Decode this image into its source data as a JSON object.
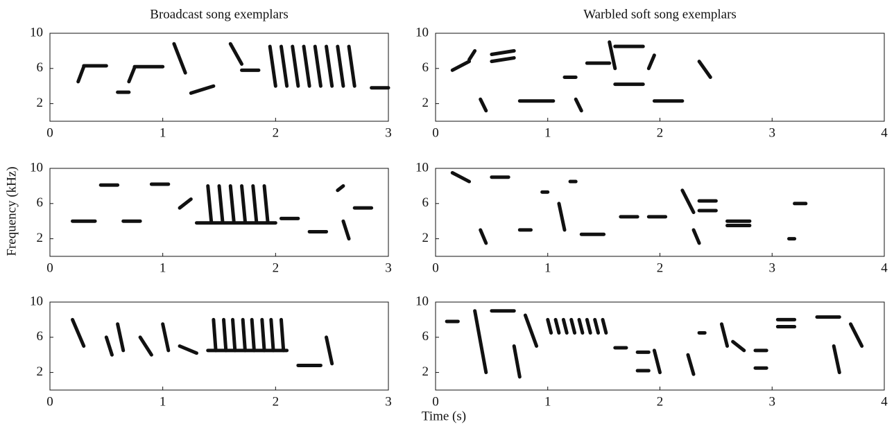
{
  "xlabel": "Time (s)",
  "ylabel": "Frequency (kHz)",
  "chart_data": [
    {
      "type": "spectrogram",
      "title": "Broadcast song exemplars",
      "xlim": [
        0,
        3
      ],
      "ylim": [
        0,
        10
      ],
      "xticks": [
        0,
        1,
        2,
        3
      ],
      "yticks": [
        2,
        6,
        10
      ],
      "color": "#111111",
      "strokes": [
        {
          "t": [
            0.25,
            0.3
          ],
          "f": [
            4.5,
            6.2
          ]
        },
        {
          "t": [
            0.3,
            0.5
          ],
          "f": [
            6.3,
            6.3
          ]
        },
        {
          "t": [
            0.6,
            0.7
          ],
          "f": [
            3.3,
            3.3
          ]
        },
        {
          "t": [
            0.7,
            0.75
          ],
          "f": [
            4.5,
            6.1
          ]
        },
        {
          "t": [
            0.75,
            1.0
          ],
          "f": [
            6.2,
            6.2
          ]
        },
        {
          "t": [
            1.1,
            1.2
          ],
          "f": [
            8.8,
            5.5
          ]
        },
        {
          "t": [
            1.25,
            1.45
          ],
          "f": [
            3.2,
            4.0
          ]
        },
        {
          "t": [
            1.6,
            1.7
          ],
          "f": [
            8.8,
            6.5
          ]
        },
        {
          "t": [
            1.7,
            1.85
          ],
          "f": [
            5.8,
            5.8
          ]
        },
        {
          "t": [
            1.95,
            2.0
          ],
          "f": [
            8.5,
            4.0
          ]
        },
        {
          "t": [
            2.05,
            2.1
          ],
          "f": [
            8.5,
            4.0
          ]
        },
        {
          "t": [
            2.15,
            2.2
          ],
          "f": [
            8.5,
            4.0
          ]
        },
        {
          "t": [
            2.25,
            2.3
          ],
          "f": [
            8.5,
            4.0
          ]
        },
        {
          "t": [
            2.35,
            2.4
          ],
          "f": [
            8.5,
            4.0
          ]
        },
        {
          "t": [
            2.45,
            2.5
          ],
          "f": [
            8.5,
            4.0
          ]
        },
        {
          "t": [
            2.55,
            2.6
          ],
          "f": [
            8.5,
            4.0
          ]
        },
        {
          "t": [
            2.65,
            2.7
          ],
          "f": [
            8.5,
            4.0
          ]
        },
        {
          "t": [
            2.85,
            3.0
          ],
          "f": [
            3.8,
            3.8
          ]
        }
      ]
    },
    {
      "type": "spectrogram",
      "title": "Warbled soft song exemplars",
      "xlim": [
        0,
        4
      ],
      "ylim": [
        0,
        10
      ],
      "xticks": [
        0,
        1,
        2,
        3,
        4
      ],
      "yticks": [
        2,
        6,
        10
      ],
      "color": "#111111",
      "strokes": [
        {
          "t": [
            0.15,
            0.3
          ],
          "f": [
            5.8,
            6.8
          ]
        },
        {
          "t": [
            0.3,
            0.35
          ],
          "f": [
            7,
            8
          ]
        },
        {
          "t": [
            0.4,
            0.45
          ],
          "f": [
            2.5,
            1.2
          ]
        },
        {
          "t": [
            0.5,
            0.7
          ],
          "f": [
            7.6,
            8
          ]
        },
        {
          "t": [
            0.5,
            0.7
          ],
          "f": [
            6.8,
            7.2
          ]
        },
        {
          "t": [
            0.75,
            1.05
          ],
          "f": [
            2.3,
            2.3
          ]
        },
        {
          "t": [
            1.15,
            1.25
          ],
          "f": [
            5,
            5
          ]
        },
        {
          "t": [
            1.25,
            1.3
          ],
          "f": [
            2.5,
            1.2
          ]
        },
        {
          "t": [
            1.35,
            1.55
          ],
          "f": [
            6.6,
            6.6
          ]
        },
        {
          "t": [
            1.55,
            1.6
          ],
          "f": [
            9,
            6
          ]
        },
        {
          "t": [
            1.6,
            1.85
          ],
          "f": [
            8.5,
            8.5
          ]
        },
        {
          "t": [
            1.6,
            1.85
          ],
          "f": [
            4.2,
            4.2
          ]
        },
        {
          "t": [
            1.9,
            1.95
          ],
          "f": [
            6,
            7.5
          ]
        },
        {
          "t": [
            1.95,
            2.2
          ],
          "f": [
            2.3,
            2.3
          ]
        },
        {
          "t": [
            2.35,
            2.45
          ],
          "f": [
            6.8,
            5
          ]
        }
      ]
    },
    {
      "type": "spectrogram",
      "xlim": [
        0,
        3
      ],
      "ylim": [
        0,
        10
      ],
      "xticks": [
        0,
        1,
        2,
        3
      ],
      "yticks": [
        2,
        6,
        10
      ],
      "color": "#111111",
      "strokes": [
        {
          "t": [
            0.2,
            0.4
          ],
          "f": [
            4,
            4
          ]
        },
        {
          "t": [
            0.45,
            0.6
          ],
          "f": [
            8.1,
            8.1
          ]
        },
        {
          "t": [
            0.65,
            0.8
          ],
          "f": [
            4,
            4
          ]
        },
        {
          "t": [
            0.9,
            1.05
          ],
          "f": [
            8.2,
            8.2
          ]
        },
        {
          "t": [
            1.15,
            1.25
          ],
          "f": [
            5.5,
            6.5
          ]
        },
        {
          "t": [
            1.4,
            1.43
          ],
          "f": [
            8,
            4
          ]
        },
        {
          "t": [
            1.5,
            1.53
          ],
          "f": [
            8,
            4
          ]
        },
        {
          "t": [
            1.6,
            1.63
          ],
          "f": [
            8,
            4
          ]
        },
        {
          "t": [
            1.7,
            1.73
          ],
          "f": [
            8,
            4
          ]
        },
        {
          "t": [
            1.8,
            1.83
          ],
          "f": [
            8,
            4
          ]
        },
        {
          "t": [
            1.9,
            1.93
          ],
          "f": [
            8,
            4
          ]
        },
        {
          "t": [
            1.3,
            2.0
          ],
          "f": [
            3.8,
            3.8
          ]
        },
        {
          "t": [
            2.05,
            2.2
          ],
          "f": [
            4.3,
            4.3
          ]
        },
        {
          "t": [
            2.3,
            2.45
          ],
          "f": [
            2.8,
            2.8
          ]
        },
        {
          "t": [
            2.55,
            2.6
          ],
          "f": [
            7.5,
            8
          ]
        },
        {
          "t": [
            2.6,
            2.65
          ],
          "f": [
            4,
            2
          ]
        },
        {
          "t": [
            2.7,
            2.85
          ],
          "f": [
            5.5,
            5.5
          ]
        }
      ]
    },
    {
      "type": "spectrogram",
      "xlim": [
        0,
        4
      ],
      "ylim": [
        0,
        10
      ],
      "xticks": [
        0,
        1,
        2,
        3,
        4
      ],
      "yticks": [
        2,
        6,
        10
      ],
      "color": "#111111",
      "strokes": [
        {
          "t": [
            0.15,
            0.3
          ],
          "f": [
            9.5,
            8.5
          ]
        },
        {
          "t": [
            0.4,
            0.45
          ],
          "f": [
            3,
            1.5
          ]
        },
        {
          "t": [
            0.5,
            0.65
          ],
          "f": [
            9,
            9
          ]
        },
        {
          "t": [
            0.75,
            0.85
          ],
          "f": [
            3,
            3
          ]
        },
        {
          "t": [
            0.95,
            1.0
          ],
          "f": [
            7.3,
            7.3
          ]
        },
        {
          "t": [
            1.1,
            1.15
          ],
          "f": [
            6,
            3
          ]
        },
        {
          "t": [
            1.2,
            1.25
          ],
          "f": [
            8.5,
            8.5
          ]
        },
        {
          "t": [
            1.3,
            1.5
          ],
          "f": [
            2.5,
            2.5
          ]
        },
        {
          "t": [
            1.65,
            1.8
          ],
          "f": [
            4.5,
            4.5
          ]
        },
        {
          "t": [
            1.9,
            2.05
          ],
          "f": [
            4.5,
            4.5
          ]
        },
        {
          "t": [
            2.2,
            2.3
          ],
          "f": [
            7.5,
            5
          ]
        },
        {
          "t": [
            2.3,
            2.35
          ],
          "f": [
            3,
            1.5
          ]
        },
        {
          "t": [
            2.35,
            2.5
          ],
          "f": [
            6.3,
            6.3
          ]
        },
        {
          "t": [
            2.35,
            2.5
          ],
          "f": [
            5.2,
            5.2
          ]
        },
        {
          "t": [
            2.6,
            2.8
          ],
          "f": [
            4,
            4
          ]
        },
        {
          "t": [
            2.6,
            2.8
          ],
          "f": [
            3.5,
            3.5
          ]
        },
        {
          "t": [
            3.2,
            3.3
          ],
          "f": [
            6,
            6
          ]
        },
        {
          "t": [
            3.15,
            3.2
          ],
          "f": [
            2,
            2
          ]
        }
      ]
    },
    {
      "type": "spectrogram",
      "xlim": [
        0,
        3
      ],
      "ylim": [
        0,
        10
      ],
      "xticks": [
        0,
        1,
        2,
        3
      ],
      "yticks": [
        2,
        6,
        10
      ],
      "color": "#111111",
      "strokes": [
        {
          "t": [
            0.2,
            0.3
          ],
          "f": [
            8,
            5
          ]
        },
        {
          "t": [
            0.5,
            0.55
          ],
          "f": [
            6,
            4
          ]
        },
        {
          "t": [
            0.6,
            0.65
          ],
          "f": [
            7.5,
            4.5
          ]
        },
        {
          "t": [
            0.8,
            0.9
          ],
          "f": [
            6,
            4
          ]
        },
        {
          "t": [
            1.0,
            1.05
          ],
          "f": [
            7.5,
            4.5
          ]
        },
        {
          "t": [
            1.15,
            1.3
          ],
          "f": [
            5,
            4.2
          ]
        },
        {
          "t": [
            1.45,
            1.47
          ],
          "f": [
            8,
            4.5
          ]
        },
        {
          "t": [
            1.54,
            1.56
          ],
          "f": [
            8,
            4.5
          ]
        },
        {
          "t": [
            1.62,
            1.64
          ],
          "f": [
            8,
            4.5
          ]
        },
        {
          "t": [
            1.71,
            1.73
          ],
          "f": [
            8,
            4.5
          ]
        },
        {
          "t": [
            1.79,
            1.81
          ],
          "f": [
            8,
            4.5
          ]
        },
        {
          "t": [
            1.88,
            1.9
          ],
          "f": [
            8,
            4.5
          ]
        },
        {
          "t": [
            1.96,
            1.98
          ],
          "f": [
            8,
            4.5
          ]
        },
        {
          "t": [
            2.05,
            2.07
          ],
          "f": [
            8,
            4.5
          ]
        },
        {
          "t": [
            1.4,
            2.1
          ],
          "f": [
            4.5,
            4.5
          ]
        },
        {
          "t": [
            2.2,
            2.4
          ],
          "f": [
            2.8,
            2.8
          ]
        },
        {
          "t": [
            2.45,
            2.5
          ],
          "f": [
            6,
            3
          ]
        }
      ]
    },
    {
      "type": "spectrogram",
      "xlim": [
        0,
        4
      ],
      "ylim": [
        0,
        10
      ],
      "xticks": [
        0,
        1,
        2,
        3,
        4
      ],
      "yticks": [
        2,
        6,
        10
      ],
      "color": "#111111",
      "strokes": [
        {
          "t": [
            0.1,
            0.2
          ],
          "f": [
            7.8,
            7.8
          ]
        },
        {
          "t": [
            0.35,
            0.45
          ],
          "f": [
            9,
            2
          ]
        },
        {
          "t": [
            0.5,
            0.7
          ],
          "f": [
            9,
            9
          ]
        },
        {
          "t": [
            0.7,
            0.75
          ],
          "f": [
            5,
            1.5
          ]
        },
        {
          "t": [
            0.8,
            0.9
          ],
          "f": [
            8.5,
            5
          ]
        },
        {
          "t": [
            1.0,
            1.03
          ],
          "f": [
            8,
            6.5
          ]
        },
        {
          "t": [
            1.07,
            1.1
          ],
          "f": [
            8,
            6.5
          ]
        },
        {
          "t": [
            1.14,
            1.17
          ],
          "f": [
            8,
            6.5
          ]
        },
        {
          "t": [
            1.21,
            1.24
          ],
          "f": [
            8,
            6.5
          ]
        },
        {
          "t": [
            1.28,
            1.31
          ],
          "f": [
            8,
            6.5
          ]
        },
        {
          "t": [
            1.35,
            1.38
          ],
          "f": [
            8,
            6.5
          ]
        },
        {
          "t": [
            1.42,
            1.45
          ],
          "f": [
            8,
            6.5
          ]
        },
        {
          "t": [
            1.49,
            1.52
          ],
          "f": [
            8,
            6.5
          ]
        },
        {
          "t": [
            1.6,
            1.7
          ],
          "f": [
            4.8,
            4.8
          ]
        },
        {
          "t": [
            1.8,
            1.9
          ],
          "f": [
            4.3,
            4.3
          ]
        },
        {
          "t": [
            1.8,
            1.9
          ],
          "f": [
            2.2,
            2.2
          ]
        },
        {
          "t": [
            1.95,
            2.0
          ],
          "f": [
            4.5,
            2
          ]
        },
        {
          "t": [
            2.25,
            2.3
          ],
          "f": [
            4,
            1.8
          ]
        },
        {
          "t": [
            2.35,
            2.4
          ],
          "f": [
            6.5,
            6.5
          ]
        },
        {
          "t": [
            2.55,
            2.6
          ],
          "f": [
            7.5,
            5
          ]
        },
        {
          "t": [
            2.65,
            2.75
          ],
          "f": [
            5.5,
            4.5
          ]
        },
        {
          "t": [
            2.85,
            2.95
          ],
          "f": [
            2.5,
            2.5
          ]
        },
        {
          "t": [
            2.85,
            2.95
          ],
          "f": [
            4.5,
            4.5
          ]
        },
        {
          "t": [
            3.05,
            3.2
          ],
          "f": [
            8,
            8
          ]
        },
        {
          "t": [
            3.05,
            3.2
          ],
          "f": [
            7.2,
            7.2
          ]
        },
        {
          "t": [
            3.4,
            3.6
          ],
          "f": [
            8.3,
            8.3
          ]
        },
        {
          "t": [
            3.55,
            3.6
          ],
          "f": [
            5,
            2
          ]
        },
        {
          "t": [
            3.7,
            3.8
          ],
          "f": [
            7.5,
            5
          ]
        }
      ]
    }
  ]
}
